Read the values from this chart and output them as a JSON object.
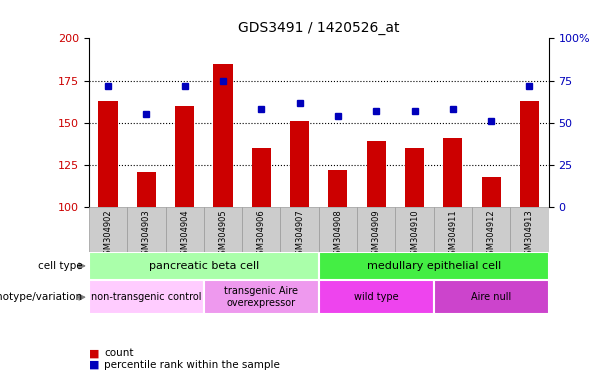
{
  "title": "GDS3491 / 1420526_at",
  "samples": [
    "GSM304902",
    "GSM304903",
    "GSM304904",
    "GSM304905",
    "GSM304906",
    "GSM304907",
    "GSM304908",
    "GSM304909",
    "GSM304910",
    "GSM304911",
    "GSM304912",
    "GSM304913"
  ],
  "counts": [
    163,
    121,
    160,
    185,
    135,
    151,
    122,
    139,
    135,
    141,
    118,
    163
  ],
  "percentile_ranks": [
    72,
    55,
    72,
    75,
    58,
    62,
    54,
    57,
    57,
    58,
    51,
    72
  ],
  "ylim_left": [
    100,
    200
  ],
  "ylim_right": [
    0,
    100
  ],
  "yticks_left": [
    100,
    125,
    150,
    175,
    200
  ],
  "yticks_right": [
    0,
    25,
    50,
    75,
    100
  ],
  "bar_color": "#cc0000",
  "dot_color": "#0000bb",
  "bar_width": 0.5,
  "cell_type_row": [
    {
      "label": "pancreatic beta cell",
      "start": 0,
      "end": 6,
      "color": "#aaffaa"
    },
    {
      "label": "medullary epithelial cell",
      "start": 6,
      "end": 12,
      "color": "#44ee44"
    }
  ],
  "genotype_row": [
    {
      "label": "non-transgenic control",
      "start": 0,
      "end": 3,
      "color": "#ffccff"
    },
    {
      "label": "transgenic Aire\noverexpressor",
      "start": 3,
      "end": 6,
      "color": "#ee99ee"
    },
    {
      "label": "wild type",
      "start": 6,
      "end": 9,
      "color": "#ee44ee"
    },
    {
      "label": "Aire null",
      "start": 9,
      "end": 12,
      "color": "#cc44cc"
    }
  ],
  "sample_box_color": "#cccccc",
  "sample_box_edge": "#999999",
  "legend_count_color": "#cc0000",
  "legend_pct_color": "#0000bb",
  "tick_label_color_left": "#cc0000",
  "tick_label_color_right": "#0000bb",
  "gridline_ticks": [
    125,
    150,
    175
  ]
}
